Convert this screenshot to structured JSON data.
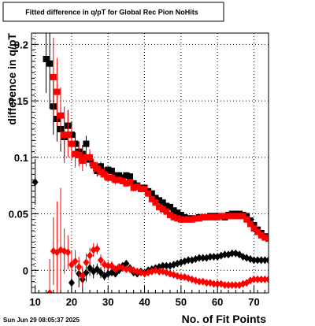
{
  "chart_data": {
    "type": "scatter",
    "title": "Fitted difference in q/pT for Global Rec Pion NoHits",
    "xlabel": "No. of Fit Points",
    "ylabel": "difference in q/pT",
    "xlim": [
      9,
      74
    ],
    "ylim": [
      -0.02,
      0.21
    ],
    "x_ticks": [
      10,
      20,
      30,
      40,
      50,
      60,
      70
    ],
    "y_ticks": [
      0,
      0.05,
      0.1,
      0.15,
      0.2
    ],
    "y_tick_labels": [
      "0",
      "0.05",
      "0.1",
      "0.15",
      "0.2"
    ],
    "grid": true,
    "timestamp": "Sun Jun 29 08:05:37 2025",
    "series": [
      {
        "color": "#000000",
        "marker": "square",
        "x": [
          13,
          14,
          15,
          16,
          17,
          18,
          19,
          20,
          21,
          22,
          23,
          24,
          25,
          26,
          27,
          28,
          29,
          30,
          31,
          32,
          33,
          34,
          35,
          36,
          37,
          38,
          39,
          40,
          41,
          42,
          43,
          44,
          45,
          46,
          47,
          48,
          49,
          50,
          51,
          52,
          53,
          54,
          55,
          56,
          57,
          58,
          59,
          60,
          61,
          62,
          63,
          64,
          65,
          66,
          67,
          68,
          69,
          70,
          71,
          72,
          73,
          74
        ],
        "y": [
          0.187,
          0.183,
          0.145,
          0.134,
          0.125,
          0.118,
          0.128,
          0.12,
          0.112,
          0.105,
          0.103,
          0.112,
          0.098,
          0.093,
          0.088,
          0.092,
          0.087,
          0.089,
          0.088,
          0.084,
          0.084,
          0.082,
          0.084,
          0.083,
          0.077,
          0.075,
          0.073,
          0.073,
          0.07,
          0.068,
          0.064,
          0.062,
          0.06,
          0.057,
          0.056,
          0.053,
          0.051,
          0.049,
          0.047,
          0.046,
          0.046,
          0.046,
          0.047,
          0.047,
          0.047,
          0.048,
          0.048,
          0.048,
          0.048,
          0.047,
          0.049,
          0.05,
          0.05,
          0.05,
          0.049,
          0.048,
          0.044,
          0.04,
          0.036,
          0.033,
          0.03,
          0.029
        ],
        "yerr": [
          0.03,
          0.04,
          0.025,
          0.02,
          0.02,
          0.018,
          0.014,
          0.012,
          0.01,
          0.009,
          0.008,
          0.007,
          0.006,
          0.005,
          0.005,
          0.004,
          0.004,
          0.003,
          0.003,
          0.003,
          0.003,
          0.003,
          0.003,
          0.003,
          0.002,
          0.002,
          0.002,
          0.002,
          0.002,
          0.002,
          0.002,
          0.002,
          0.002,
          0.002,
          0.002,
          0.002,
          0.002,
          0.002,
          0.002,
          0.002,
          0.002,
          0.002,
          0.002,
          0.002,
          0.002,
          0.002,
          0.002,
          0.002,
          0.002,
          0.002,
          0.002,
          0.002,
          0.002,
          0.002,
          0.002,
          0.002,
          0.002,
          0.002,
          0.002,
          0.002,
          0.002,
          0.002
        ]
      },
      {
        "color": "#ff0000",
        "marker": "square",
        "x": [
          15,
          16,
          17,
          18,
          19,
          20,
          21,
          22,
          23,
          24,
          25,
          26,
          27,
          28,
          29,
          30,
          31,
          32,
          33,
          34,
          35,
          36,
          37,
          38,
          39,
          40,
          41,
          42,
          43,
          44,
          45,
          46,
          47,
          48,
          49,
          50,
          51,
          52,
          53,
          54,
          55,
          56,
          57,
          58,
          59,
          60,
          61,
          62,
          63,
          64,
          65,
          66,
          67,
          68,
          69,
          70,
          71,
          72,
          73,
          74
        ],
        "y": [
          0.171,
          0.158,
          0.137,
          0.12,
          0.12,
          0.112,
          0.103,
          0.102,
          0.097,
          0.1,
          0.1,
          0.093,
          0.09,
          0.087,
          0.085,
          0.082,
          0.082,
          0.08,
          0.08,
          0.079,
          0.077,
          0.078,
          0.073,
          0.074,
          0.072,
          0.072,
          0.068,
          0.063,
          0.06,
          0.056,
          0.054,
          0.052,
          0.049,
          0.047,
          0.046,
          0.045,
          0.045,
          0.045,
          0.045,
          0.046,
          0.046,
          0.047,
          0.047,
          0.047,
          0.047,
          0.047,
          0.048,
          0.048,
          0.048,
          0.048,
          0.048,
          0.048,
          0.048,
          0.045,
          0.041,
          0.037,
          0.034,
          0.031,
          0.029,
          0.028
        ],
        "yerr": [
          0.035,
          0.03,
          0.025,
          0.025,
          0.02,
          0.015,
          0.012,
          0.01,
          0.009,
          0.008,
          0.007,
          0.006,
          0.006,
          0.005,
          0.005,
          0.004,
          0.004,
          0.004,
          0.003,
          0.003,
          0.003,
          0.003,
          0.003,
          0.003,
          0.003,
          0.002,
          0.002,
          0.002,
          0.002,
          0.002,
          0.002,
          0.002,
          0.002,
          0.002,
          0.002,
          0.002,
          0.002,
          0.002,
          0.002,
          0.002,
          0.002,
          0.002,
          0.002,
          0.002,
          0.002,
          0.002,
          0.002,
          0.002,
          0.002,
          0.002,
          0.002,
          0.002,
          0.002,
          0.002,
          0.002,
          0.002,
          0.002,
          0.002,
          0.002,
          0.002
        ]
      },
      {
        "color": "#000000",
        "marker": "diamond",
        "x": [
          10,
          20,
          22,
          23,
          24,
          25,
          26,
          27,
          28,
          29,
          30,
          31,
          32,
          33,
          34,
          35,
          36,
          37,
          38,
          39,
          40,
          41,
          42,
          43,
          44,
          45,
          46,
          47,
          48,
          49,
          50,
          51,
          52,
          53,
          54,
          55,
          56,
          57,
          58,
          59,
          60,
          61,
          62,
          63,
          64,
          65,
          66,
          67,
          68,
          69,
          70,
          71,
          72,
          73,
          74
        ],
        "y": [
          0.078,
          -0.011,
          -0.003,
          -0.008,
          -0.002,
          0.002,
          -0.001,
          0.001,
          -0.002,
          -0.005,
          -0.003,
          -0.002,
          -0.003,
          0.0,
          0.004,
          0.006,
          0.002,
          -0.002,
          -0.003,
          -0.001,
          -0.002,
          0.0,
          0.001,
          0.002,
          0.003,
          0.004,
          0.004,
          0.004,
          0.005,
          0.006,
          0.007,
          0.008,
          0.009,
          0.009,
          0.01,
          0.011,
          0.011,
          0.011,
          0.012,
          0.012,
          0.012,
          0.013,
          0.014,
          0.014,
          0.015,
          0.015,
          0.014,
          0.012,
          0.011,
          0.01,
          0.009,
          0.009,
          0.009,
          0.009,
          0.009
        ],
        "yerr": [
          0.02,
          0.02,
          0.012,
          0.01,
          0.008,
          0.007,
          0.006,
          0.005,
          0.005,
          0.004,
          0.004,
          0.003,
          0.003,
          0.003,
          0.003,
          0.003,
          0.003,
          0.003,
          0.003,
          0.003,
          0.002,
          0.002,
          0.002,
          0.002,
          0.002,
          0.002,
          0.002,
          0.002,
          0.002,
          0.002,
          0.002,
          0.002,
          0.002,
          0.002,
          0.002,
          0.002,
          0.002,
          0.002,
          0.002,
          0.002,
          0.002,
          0.002,
          0.002,
          0.002,
          0.002,
          0.002,
          0.002,
          0.002,
          0.002,
          0.002,
          0.002,
          0.002,
          0.002,
          0.002,
          0.002
        ]
      },
      {
        "color": "#ff0000",
        "marker": "diamond",
        "x": [
          14,
          15,
          16,
          17,
          18,
          19,
          20,
          21,
          22,
          23,
          24,
          25,
          26,
          27,
          28,
          29,
          30,
          31,
          32,
          33,
          34,
          35,
          36,
          37,
          38,
          39,
          40,
          41,
          42,
          43,
          44,
          45,
          46,
          47,
          48,
          49,
          50,
          51,
          52,
          53,
          54,
          55,
          56,
          57,
          58,
          59,
          60,
          61,
          62,
          63,
          64,
          65,
          66,
          67,
          68,
          69,
          70,
          71,
          72,
          73,
          74
        ],
        "y": [
          -0.02,
          0.017,
          0.016,
          0.018,
          0.017,
          0.016,
          0.005,
          0.008,
          0.003,
          -0.005,
          0.007,
          0.013,
          0.018,
          0.019,
          0.009,
          0.005,
          0.004,
          0.004,
          0.001,
          0.003,
          0.002,
          0.001,
          0.001,
          0.0,
          -0.001,
          -0.002,
          -0.003,
          -0.002,
          -0.001,
          0.0,
          -0.001,
          -0.001,
          -0.002,
          -0.003,
          -0.004,
          -0.005,
          -0.006,
          -0.006,
          -0.007,
          -0.008,
          -0.009,
          -0.01,
          -0.01,
          -0.011,
          -0.011,
          -0.012,
          -0.012,
          -0.012,
          -0.013,
          -0.013,
          -0.013,
          -0.013,
          -0.013,
          -0.012,
          -0.011,
          -0.009,
          -0.008,
          -0.008,
          -0.008,
          -0.008,
          -0.008
        ],
        "yerr": [
          0.03,
          0.03,
          0.045,
          0.055,
          0.02,
          0.015,
          0.012,
          0.01,
          0.009,
          0.009,
          0.008,
          0.007,
          0.006,
          0.005,
          0.005,
          0.004,
          0.004,
          0.004,
          0.003,
          0.003,
          0.003,
          0.003,
          0.003,
          0.003,
          0.002,
          0.002,
          0.002,
          0.002,
          0.002,
          0.002,
          0.002,
          0.002,
          0.002,
          0.002,
          0.002,
          0.002,
          0.002,
          0.002,
          0.002,
          0.002,
          0.002,
          0.002,
          0.002,
          0.002,
          0.002,
          0.002,
          0.002,
          0.002,
          0.002,
          0.002,
          0.002,
          0.002,
          0.002,
          0.002,
          0.002,
          0.002,
          0.002,
          0.002,
          0.002,
          0.002,
          0.002
        ]
      }
    ]
  }
}
